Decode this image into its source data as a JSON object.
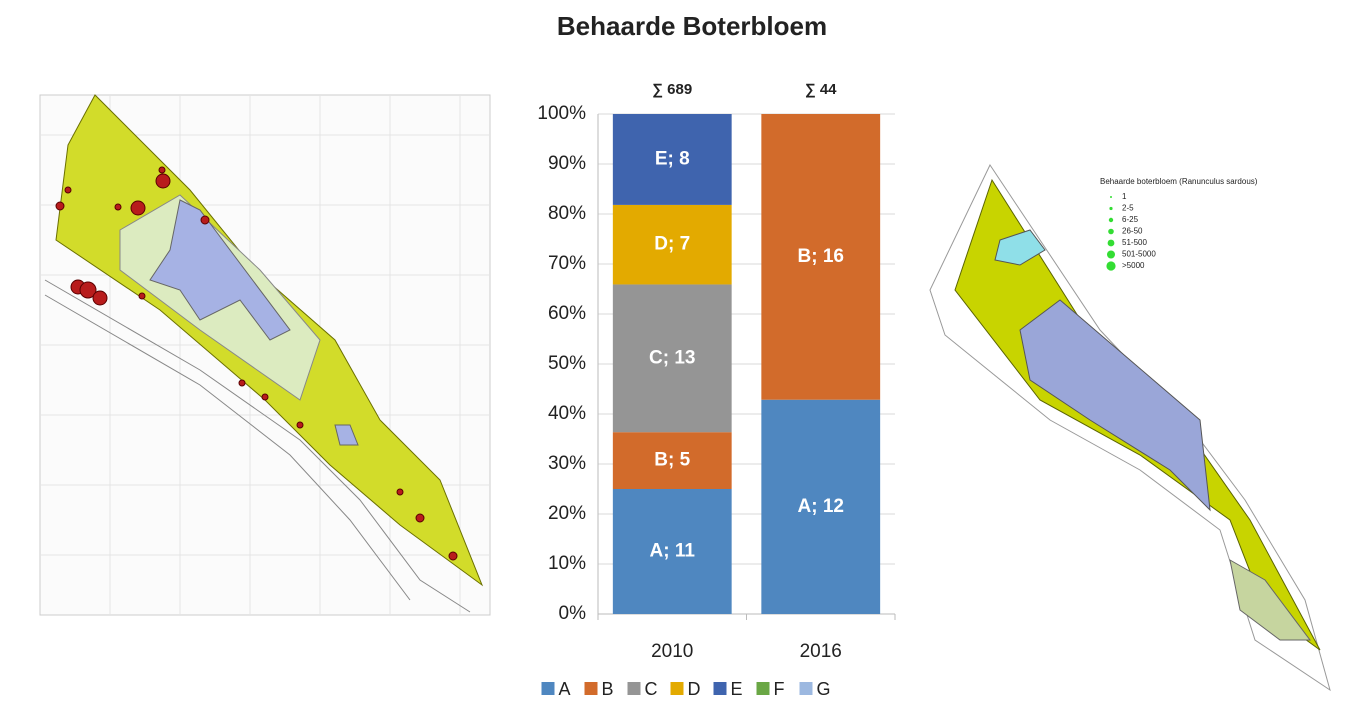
{
  "chart_data": {
    "type": "bar",
    "stacked": "percent",
    "title": "Behaarde Boterbloem",
    "annotations": [
      "∑ 689",
      "∑ 44"
    ],
    "categories": [
      "2010",
      "2016"
    ],
    "series": [
      {
        "name": "A",
        "color": "#4f87c0",
        "values": [
          11,
          12
        ],
        "value_labels": [
          "A; 11",
          "A; 12"
        ]
      },
      {
        "name": "B",
        "color": "#d26b2b",
        "values": [
          5,
          16
        ],
        "value_labels": [
          "B; 5",
          "B; 16"
        ]
      },
      {
        "name": "C",
        "color": "#959595",
        "values": [
          13,
          null
        ],
        "value_labels": [
          "C; 13",
          null
        ]
      },
      {
        "name": "D",
        "color": "#e3aa00",
        "values": [
          7,
          null
        ],
        "value_labels": [
          "D; 7",
          null
        ]
      },
      {
        "name": "E",
        "color": "#3f64ae",
        "values": [
          8,
          null
        ],
        "value_labels": [
          "E; 8",
          null
        ]
      },
      {
        "name": "F",
        "color": "#6aa745",
        "values": [
          null,
          null
        ]
      },
      {
        "name": "G",
        "color": "#9cb8e0",
        "values": [
          null,
          null
        ]
      }
    ],
    "ylim": [
      0,
      100
    ],
    "yticks": [
      {
        "value": 0,
        "label": "0%"
      },
      {
        "value": 10,
        "label": "10%"
      },
      {
        "value": 20,
        "label": "20%"
      },
      {
        "value": 30,
        "label": "30%"
      },
      {
        "value": 40,
        "label": "40%"
      },
      {
        "value": 50,
        "label": "50%"
      },
      {
        "value": 60,
        "label": "60%"
      },
      {
        "value": 70,
        "label": "70%"
      },
      {
        "value": 80,
        "label": "80%"
      },
      {
        "value": 90,
        "label": "90%"
      },
      {
        "value": 100,
        "label": "100%"
      }
    ],
    "legend": "bottom"
  },
  "map_legend": {
    "title": "Behaarde boterbloem (Ranunculus sardous)",
    "items": [
      "1",
      "2-5",
      "6-25",
      "26-50",
      "51-500",
      "501-5000",
      ">5000"
    ]
  }
}
